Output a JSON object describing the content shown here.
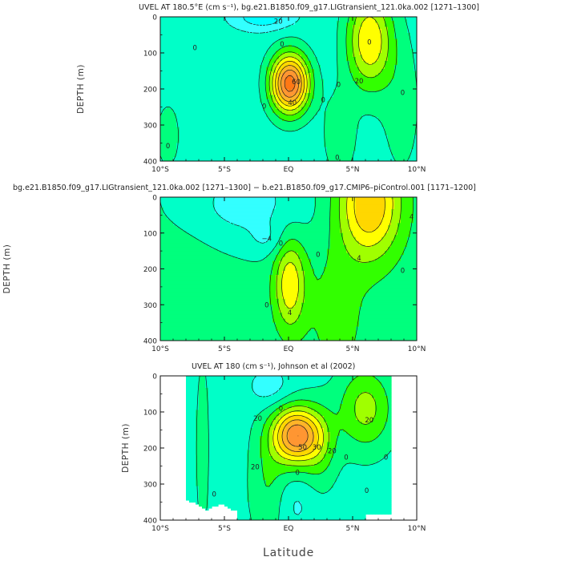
{
  "chart_data": [
    {
      "type": "contour",
      "title": "UVEL AT 180.5°E (cm s⁻¹), bg.e21.B1850.f09_g17.LIGtransient_121.0ka.002 [1271–1300]",
      "ylabel": "DEPTH (m)",
      "xlabel": "",
      "xlim": [
        -10,
        10
      ],
      "ylim": [
        400,
        0
      ],
      "x_ticks": [
        "10°S",
        "5°S",
        "EQ",
        "5°N",
        "10°N"
      ],
      "x_tick_values": [
        -10,
        -5,
        0,
        5,
        10
      ],
      "y_ticks": [
        "0",
        "100",
        "200",
        "300",
        "400"
      ],
      "y_tick_values": [
        0,
        100,
        200,
        300,
        400
      ],
      "levels": [
        -30,
        -20,
        -10,
        0,
        10,
        20,
        30,
        40,
        50,
        60,
        70,
        80
      ],
      "features": [
        {
          "kind": "core",
          "x": 0.1,
          "y": 185,
          "sx": 1.05,
          "sy": 58,
          "amp": 82
        },
        {
          "kind": "core",
          "x": 6.3,
          "y": 65,
          "sx": 1.25,
          "sy": 95,
          "amp": 45
        },
        {
          "kind": "core",
          "x": -2.0,
          "y": 0,
          "sx": 1.6,
          "sy": 25,
          "amp": -22
        },
        {
          "kind": "core",
          "x": 4.0,
          "y": 330,
          "sx": 1.0,
          "sy": 90,
          "amp": 12
        },
        {
          "kind": "core",
          "x": 8.8,
          "y": 250,
          "sx": 1.2,
          "sy": 160,
          "amp": 10
        },
        {
          "kind": "core",
          "x": -9.4,
          "y": 330,
          "sx": 0.9,
          "sy": 90,
          "amp": 9
        }
      ],
      "base": -6,
      "contour_labels": [
        {
          "text": "20",
          "x": -0.8,
          "y": 12
        },
        {
          "text": "0",
          "x": -7.3,
          "y": 85
        },
        {
          "text": "60",
          "x": 0.6,
          "y": 180
        },
        {
          "text": "40",
          "x": 0.3,
          "y": 238
        },
        {
          "text": "20",
          "x": 5.5,
          "y": 178
        },
        {
          "text": "0",
          "x": 3.9,
          "y": 188
        },
        {
          "text": "0",
          "x": 2.7,
          "y": 230
        },
        {
          "text": "0",
          "x": 8.9,
          "y": 210
        },
        {
          "text": "0",
          "x": -1.9,
          "y": 248
        },
        {
          "text": "0",
          "x": -0.5,
          "y": 75
        },
        {
          "text": "0",
          "x": -9.4,
          "y": 358
        },
        {
          "text": "0",
          "x": 3.8,
          "y": 390
        },
        {
          "text": "0",
          "x": 6.3,
          "y": 70
        }
      ]
    },
    {
      "type": "contour",
      "title": "bg.e21.B1850.f09_g17.LIGtransient_121.0ka.002 [1271–1300] − b.e21.B1850.f09_g17.CMIP6–piControl.001 [1171–1200]",
      "ylabel": "DEPTH (m)",
      "xlabel": "",
      "xlim": [
        -10,
        10
      ],
      "ylim": [
        400,
        0
      ],
      "x_ticks": [
        "10°S",
        "5°S",
        "EQ",
        "5°N",
        "10°N"
      ],
      "x_tick_values": [
        -10,
        -5,
        0,
        5,
        10
      ],
      "y_ticks": [
        "0",
        "100",
        "200",
        "300",
        "400"
      ],
      "y_tick_values": [
        0,
        100,
        200,
        300,
        400
      ],
      "levels": [
        -8,
        -4,
        0,
        4,
        8,
        12,
        16
      ],
      "features": [
        {
          "kind": "core",
          "x": 6.3,
          "y": 20,
          "sx": 1.7,
          "sy": 105,
          "amp": 19
        },
        {
          "kind": "core",
          "x": 0.1,
          "y": 240,
          "sx": 0.85,
          "sy": 90,
          "amp": 14
        },
        {
          "kind": "core",
          "x": -3.5,
          "y": 20,
          "sx": 4.0,
          "sy": 90,
          "amp": -7
        },
        {
          "kind": "core",
          "x": -1.6,
          "y": 120,
          "sx": 1.0,
          "sy": 30,
          "amp": -3
        },
        {
          "kind": "core",
          "x": 3.8,
          "y": 330,
          "sx": 1.6,
          "sy": 140,
          "amp": 4
        },
        {
          "kind": "core",
          "x": -8.0,
          "y": 300,
          "sx": 2.2,
          "sy": 180,
          "amp": 2
        }
      ],
      "base": 1.5,
      "contour_labels": [
        {
          "text": "−4",
          "x": -1.7,
          "y": 115
        },
        {
          "text": "0",
          "x": -0.6,
          "y": 128
        },
        {
          "text": "0",
          "x": 2.3,
          "y": 160
        },
        {
          "text": "4",
          "x": 5.5,
          "y": 170
        },
        {
          "text": "4",
          "x": 9.6,
          "y": 55
        },
        {
          "text": "0",
          "x": -1.7,
          "y": 300
        },
        {
          "text": "4",
          "x": 0.1,
          "y": 322
        },
        {
          "text": "0",
          "x": 8.9,
          "y": 205
        }
      ]
    },
    {
      "type": "contour",
      "title": "UVEL AT 180 (cm s⁻¹), Johnson et al (2002)",
      "ylabel": "DEPTH (m)",
      "xlabel": "Latitude",
      "xlim": [
        -10,
        10
      ],
      "ylim": [
        400,
        0
      ],
      "data_lon_range": [
        -8,
        8
      ],
      "x_ticks": [
        "10°S",
        "5°S",
        "EQ",
        "5°N",
        "10°N"
      ],
      "x_tick_values": [
        -10,
        -5,
        0,
        5,
        10
      ],
      "y_ticks": [
        "0",
        "100",
        "200",
        "300",
        "400"
      ],
      "y_tick_values": [
        0,
        100,
        200,
        300,
        400
      ],
      "levels": [
        -30,
        -20,
        -10,
        0,
        10,
        20,
        30,
        40,
        50,
        60,
        70,
        80
      ],
      "features": [
        {
          "kind": "core",
          "x": 0.6,
          "y": 165,
          "sx": 1.3,
          "sy": 55,
          "amp": 72
        },
        {
          "kind": "core",
          "x": 2.5,
          "y": 200,
          "sx": 0.9,
          "sy": 80,
          "amp": 15
        },
        {
          "kind": "core",
          "x": 6.0,
          "y": 90,
          "sx": 1.5,
          "sy": 80,
          "amp": 28
        },
        {
          "kind": "core",
          "x": -1.5,
          "y": 30,
          "sx": 1.2,
          "sy": 40,
          "amp": -12
        },
        {
          "kind": "core",
          "x": -1.6,
          "y": 300,
          "sx": 1.0,
          "sy": 110,
          "amp": 14
        },
        {
          "kind": "core",
          "x": -6.7,
          "y": 200,
          "sx": 0.4,
          "sy": 200,
          "amp": 8
        },
        {
          "kind": "core",
          "x": 0.5,
          "y": 360,
          "sx": 1.0,
          "sy": 50,
          "amp": -8
        }
      ],
      "base": -4,
      "contour_labels": [
        {
          "text": "20",
          "x": -2.4,
          "y": 118
        },
        {
          "text": "20",
          "x": 6.3,
          "y": 122
        },
        {
          "text": "50",
          "x": 1.1,
          "y": 198
        },
        {
          "text": "30",
          "x": 2.2,
          "y": 198
        },
        {
          "text": "20",
          "x": 3.4,
          "y": 208
        },
        {
          "text": "20",
          "x": -2.6,
          "y": 252
        },
        {
          "text": "0",
          "x": -5.8,
          "y": 328
        },
        {
          "text": "0",
          "x": 4.5,
          "y": 225
        },
        {
          "text": "0",
          "x": 7.6,
          "y": 225
        },
        {
          "text": "0",
          "x": -0.6,
          "y": 90
        },
        {
          "text": "0",
          "x": 6.1,
          "y": 318
        },
        {
          "text": "0",
          "x": 0.7,
          "y": 268
        }
      ]
    }
  ]
}
